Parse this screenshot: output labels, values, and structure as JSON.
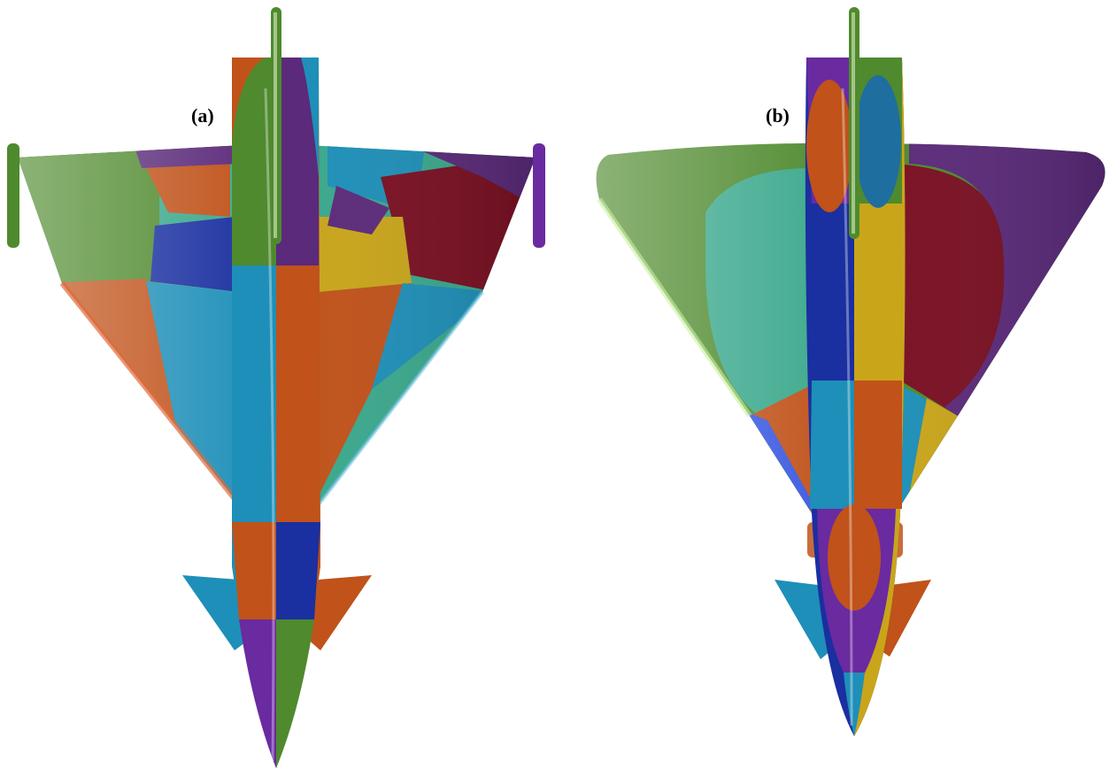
{
  "figure": {
    "panels": [
      {
        "id": "a",
        "label": "(a)"
      },
      {
        "id": "b",
        "label": "(b)"
      }
    ]
  },
  "colors": {
    "green": "#4f8a2e",
    "teal": "#3aa88c",
    "purple": "#5b2a7a",
    "orange": "#c0521a",
    "blue": "#1a2fa0",
    "cyan": "#1e8fb8",
    "gold": "#c9a51a",
    "crimson": "#7a0f22",
    "violet": "#6a2aa0"
  }
}
